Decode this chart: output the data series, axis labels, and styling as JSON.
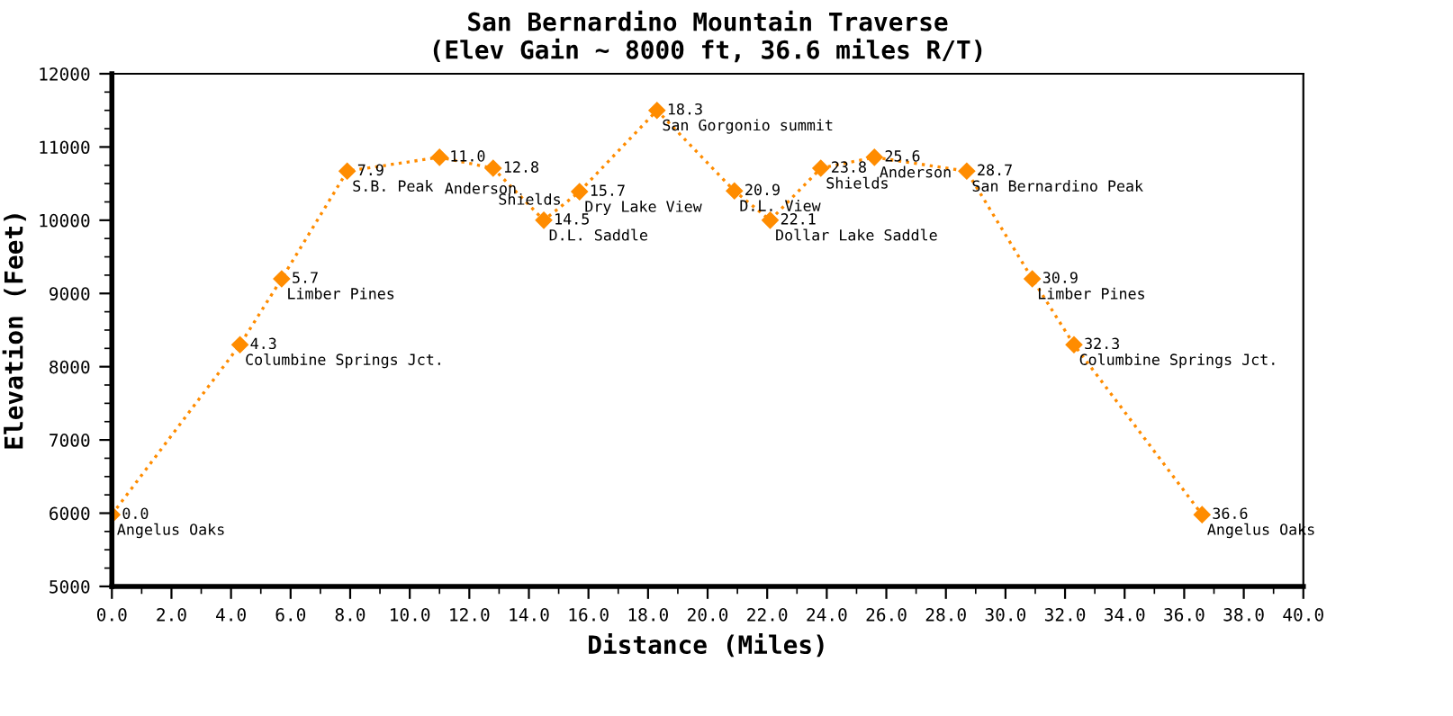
{
  "chart_data": {
    "type": "line",
    "title": "San Bernardino Mountain Traverse\n(Elev Gain ~ 8000 ft, 36.6 miles R/T)",
    "xlabel": "Distance (Miles)",
    "ylabel": "Elevation (Feet)",
    "x": [
      0.0,
      4.3,
      5.7,
      7.9,
      11.0,
      12.8,
      14.5,
      15.7,
      18.3,
      20.9,
      22.1,
      23.8,
      25.6,
      28.7,
      30.9,
      32.3,
      36.6
    ],
    "series": [
      {
        "color": "#ff8c00",
        "values": [
          5980,
          8300,
          9200,
          10670,
          10860,
          10710,
          10000,
          10390,
          11500,
          10400,
          10000,
          10710,
          10860,
          10670,
          9200,
          8300,
          5980
        ]
      }
    ],
    "xlim": [
      0,
      40
    ],
    "ylim": [
      5000,
      12000
    ],
    "xticks": [
      {
        "value": 0,
        "label": "0.0"
      },
      {
        "value": 2,
        "label": "2.0"
      },
      {
        "value": 4,
        "label": "4.0"
      },
      {
        "value": 6,
        "label": "6.0"
      },
      {
        "value": 8,
        "label": "8.0"
      },
      {
        "value": 10,
        "label": "10.0"
      },
      {
        "value": 12,
        "label": "12.0"
      },
      {
        "value": 14,
        "label": "14.0"
      },
      {
        "value": 16,
        "label": "16.0"
      },
      {
        "value": 18,
        "label": "18.0"
      },
      {
        "value": 20,
        "label": "20.0"
      },
      {
        "value": 22,
        "label": "22.0"
      },
      {
        "value": 24,
        "label": "24.0"
      },
      {
        "value": 26,
        "label": "26.0"
      },
      {
        "value": 28,
        "label": "28.0"
      },
      {
        "value": 30,
        "label": "30.0"
      },
      {
        "value": 32,
        "label": "32.0"
      },
      {
        "value": 34,
        "label": "34.0"
      },
      {
        "value": 36,
        "label": "36.0"
      },
      {
        "value": 38,
        "label": "38.0"
      },
      {
        "value": 40,
        "label": "40.0"
      }
    ],
    "yticks": [
      5000,
      6000,
      7000,
      8000,
      9000,
      10000,
      11000,
      12000
    ],
    "marker": "diamond",
    "line_style": "dotted",
    "grid": false,
    "legend": false,
    "annotations": [
      {
        "text": "0.0",
        "x": 0.0,
        "y": 5980
      },
      {
        "text": "Angelus Oaks",
        "x": 0.0,
        "y": 5980
      },
      {
        "text": "4.3",
        "x": 4.3,
        "y": 8300
      },
      {
        "text": "Columbine Springs Jct.",
        "x": 4.3,
        "y": 8300
      },
      {
        "text": "5.7",
        "x": 5.7,
        "y": 9200
      },
      {
        "text": "Limber Pines",
        "x": 5.7,
        "y": 9200
      },
      {
        "text": "7.9",
        "x": 7.9,
        "y": 10670
      },
      {
        "text": "S.B. Peak",
        "x": 7.9,
        "y": 10670
      },
      {
        "text": "11.0",
        "x": 11.0,
        "y": 10860
      },
      {
        "text": "Anderson",
        "x": 11.0,
        "y": 10860
      },
      {
        "text": "12.8",
        "x": 12.8,
        "y": 10710
      },
      {
        "text": "Shields",
        "x": 12.8,
        "y": 10710
      },
      {
        "text": "14.5",
        "x": 14.5,
        "y": 10000
      },
      {
        "text": "D.L. Saddle",
        "x": 14.5,
        "y": 10000
      },
      {
        "text": "15.7",
        "x": 15.7,
        "y": 10390
      },
      {
        "text": "Dry Lake View",
        "x": 15.7,
        "y": 10390
      },
      {
        "text": "18.3",
        "x": 18.3,
        "y": 11500
      },
      {
        "text": "San Gorgonio summit",
        "x": 18.3,
        "y": 11500
      },
      {
        "text": "20.9",
        "x": 20.9,
        "y": 10400
      },
      {
        "text": "D.L. View",
        "x": 20.9,
        "y": 10400
      },
      {
        "text": "22.1",
        "x": 22.1,
        "y": 10000
      },
      {
        "text": "Dollar Lake Saddle",
        "x": 22.1,
        "y": 10000
      },
      {
        "text": "23.8",
        "x": 23.8,
        "y": 10710
      },
      {
        "text": "Shields",
        "x": 23.8,
        "y": 10710
      },
      {
        "text": "25.6",
        "x": 25.6,
        "y": 10860
      },
      {
        "text": "Anderson",
        "x": 25.6,
        "y": 10860
      },
      {
        "text": "28.7",
        "x": 28.7,
        "y": 10670
      },
      {
        "text": "San Bernardino Peak",
        "x": 28.7,
        "y": 10670
      },
      {
        "text": "30.9",
        "x": 30.9,
        "y": 9200
      },
      {
        "text": "Limber Pines",
        "x": 30.9,
        "y": 9200
      },
      {
        "text": "32.3",
        "x": 32.3,
        "y": 8300
      },
      {
        "text": "Columbine Springs Jct.",
        "x": 32.3,
        "y": 8300
      },
      {
        "text": "36.6",
        "x": 36.6,
        "y": 5980
      },
      {
        "text": "Angelus Oaks",
        "x": 36.6,
        "y": 5980
      }
    ]
  }
}
